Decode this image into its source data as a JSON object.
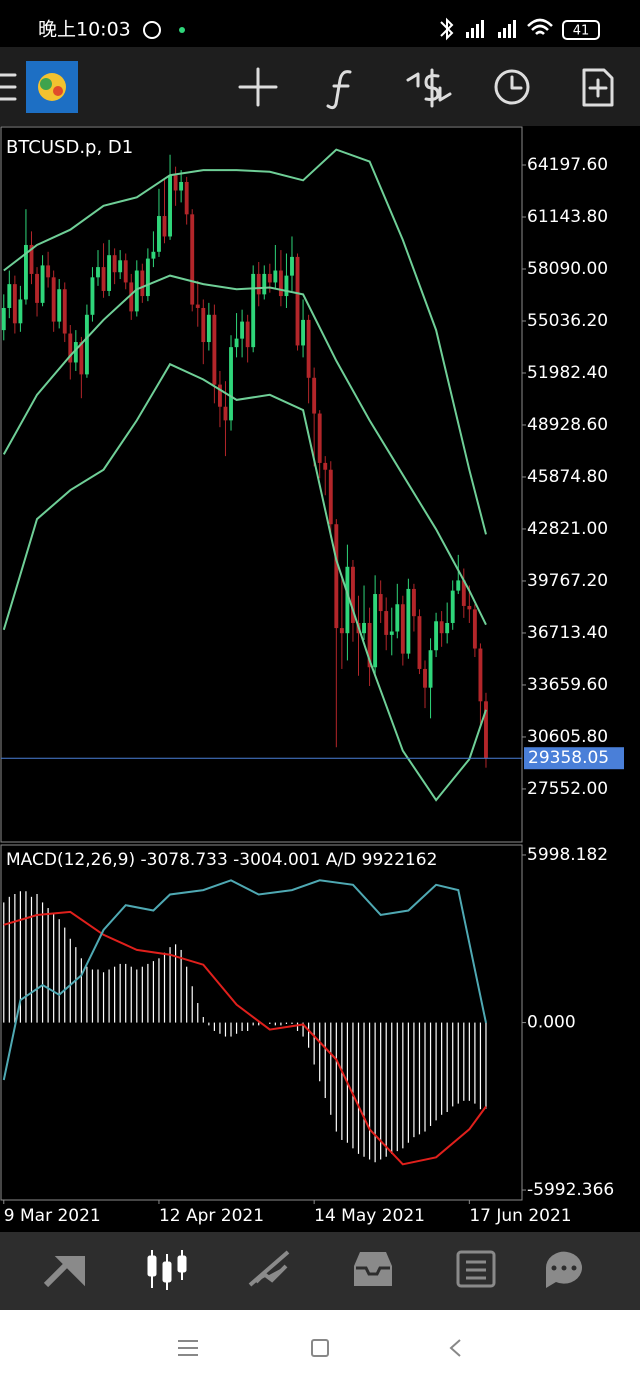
{
  "status_bar": {
    "time": "晚上10:03",
    "battery": "41"
  },
  "chart_data": [
    {
      "type": "candlestick",
      "title": "BTCUSD.p, D1",
      "open": [
        54500,
        55800,
        57200,
        54900,
        56300,
        59500,
        57800,
        56100,
        58300,
        57600,
        55000,
        56900,
        54300,
        52600,
        53800,
        51900,
        55400,
        57600,
        58200,
        56800,
        58900,
        57900,
        58600,
        57300,
        55600,
        58000,
        56500,
        58700,
        59100,
        61200,
        60000,
        63600,
        62700,
        63200,
        61300,
        56000,
        55800,
        53800,
        55400,
        51300,
        50000,
        49200,
        53500,
        54000,
        55000,
        53500,
        57800,
        56600,
        57800,
        57300,
        58000,
        56500,
        57700,
        58800,
        53600,
        55100,
        51700,
        49600,
        46700,
        46300,
        43100,
        37000,
        36700,
        40600,
        37300,
        36700,
        37300,
        34700,
        39000,
        38000,
        36600,
        36800,
        38400,
        35500,
        39300,
        37700,
        34600,
        33500,
        35700,
        37400,
        36700,
        37300,
        39200,
        39800,
        38300,
        38100,
        35800,
        32700
      ],
      "high": [
        56600,
        58000,
        57700,
        57100,
        61600,
        60300,
        58200,
        58900,
        59100,
        58000,
        57500,
        57300,
        54800,
        54500,
        54100,
        56000,
        58200,
        59200,
        59600,
        59800,
        59300,
        59200,
        59000,
        57800,
        58600,
        58400,
        59300,
        60300,
        62800,
        63400,
        64800,
        64100,
        63900,
        63500,
        61600,
        57400,
        56300,
        56100,
        56000,
        52100,
        51500,
        54200,
        55500,
        55700,
        55400,
        58300,
        58500,
        58300,
        58400,
        59500,
        59200,
        59000,
        60000,
        59000,
        56300,
        55400,
        52300,
        49800,
        47100,
        46800,
        43400,
        40000,
        41900,
        41000,
        38900,
        39500,
        38200,
        40100,
        39800,
        38800,
        38200,
        39600,
        38900,
        39900,
        39600,
        38100,
        35100,
        36400,
        37900,
        38000,
        38500,
        39800,
        41300,
        40500,
        39500,
        38400,
        36100,
        33200
      ],
      "low": [
        53900,
        55200,
        54300,
        54400,
        56000,
        57200,
        55300,
        55900,
        57000,
        54400,
        54600,
        53800,
        51600,
        52100,
        50500,
        51700,
        55000,
        57100,
        56400,
        56500,
        57200,
        57500,
        56900,
        55100,
        55300,
        56100,
        56200,
        58200,
        58800,
        59600,
        59800,
        61800,
        62000,
        60700,
        55600,
        54700,
        52500,
        53300,
        50200,
        48800,
        47100,
        48600,
        52900,
        52900,
        52600,
        53200,
        55900,
        56300,
        56700,
        56900,
        55900,
        55800,
        56800,
        53300,
        52900,
        50200,
        46500,
        45800,
        44800,
        42300,
        30000,
        34600,
        35100,
        36200,
        34200,
        36300,
        33600,
        34200,
        37300,
        35700,
        35400,
        36400,
        34800,
        35200,
        36800,
        34300,
        32300,
        31700,
        35300,
        35900,
        36100,
        36900,
        39000,
        37600,
        37300,
        35300,
        31300,
        28800
      ],
      "close": [
        55800,
        57200,
        54900,
        56300,
        59500,
        57800,
        56100,
        58300,
        57600,
        55000,
        56900,
        54300,
        52600,
        53800,
        51900,
        55400,
        57600,
        58200,
        56800,
        58900,
        57900,
        58600,
        57300,
        55600,
        58000,
        56500,
        58700,
        59100,
        61200,
        60000,
        63600,
        62700,
        63200,
        61300,
        56000,
        55800,
        53800,
        55400,
        51300,
        50000,
        49200,
        53500,
        54000,
        55000,
        53500,
        57800,
        56600,
        57800,
        57300,
        58000,
        56500,
        57700,
        58800,
        53600,
        55100,
        51700,
        49600,
        46700,
        46300,
        43100,
        37000,
        36700,
        40600,
        37300,
        36700,
        37300,
        34700,
        39000,
        38000,
        36600,
        36800,
        38400,
        35500,
        39300,
        37700,
        34600,
        33500,
        35700,
        37400,
        36700,
        37300,
        39200,
        39800,
        38300,
        38100,
        35800,
        32700,
        29358
      ],
      "up_color": "#2fd67a",
      "down_color": "#b3262a",
      "series": [
        {
          "color": "#6fcf97",
          "x": [
            0,
            6,
            12,
            18,
            24,
            30,
            36,
            42,
            48,
            54,
            60,
            66,
            72,
            78,
            84,
            87
          ],
          "values": [
            58000,
            59500,
            60400,
            61800,
            62300,
            63600,
            63900,
            63900,
            63800,
            63300,
            65100,
            64400,
            59800,
            54500,
            46300,
            42500
          ]
        },
        {
          "color": "#6fcf97",
          "x": [
            0,
            6,
            12,
            18,
            24,
            30,
            36,
            42,
            48,
            54,
            60,
            66,
            72,
            78,
            84,
            87
          ],
          "values": [
            47200,
            50700,
            53000,
            55100,
            56900,
            57700,
            57200,
            56900,
            57000,
            56600,
            52700,
            49200,
            46000,
            42800,
            39200,
            37200
          ]
        },
        {
          "color": "#6fcf97",
          "x": [
            0,
            6,
            12,
            18,
            24,
            30,
            36,
            42,
            48,
            54,
            60,
            66,
            72,
            78,
            84,
            87
          ],
          "values": [
            36900,
            43400,
            45100,
            46300,
            49200,
            52500,
            51600,
            50400,
            50700,
            49800,
            41000,
            35100,
            29800,
            26900,
            29300,
            32200
          ]
        }
      ],
      "last_price": 29358.05,
      "last_price_color": "#4a7fd8",
      "xlim": [
        -0.5,
        93.5
      ],
      "ylim": [
        24437,
        66429
      ],
      "yticks": [
        {
          "value": 27552,
          "label": "27552.00"
        },
        {
          "value": 30605.8,
          "label": "30605.80"
        },
        {
          "value": 33659.6,
          "label": "33659.60"
        },
        {
          "value": 36713.4,
          "label": "36713.40"
        },
        {
          "value": 39767.2,
          "label": "39767.20"
        },
        {
          "value": 42821,
          "label": "42821.00"
        },
        {
          "value": 45874.8,
          "label": "45874.80"
        },
        {
          "value": 48928.6,
          "label": "48928.60"
        },
        {
          "value": 51982.4,
          "label": "51982.40"
        },
        {
          "value": 55036.2,
          "label": "55036.20"
        },
        {
          "value": 58090,
          "label": "58090.00"
        },
        {
          "value": 61143.8,
          "label": "61143.80"
        },
        {
          "value": 64197.6,
          "label": "64197.60"
        }
      ]
    },
    {
      "type": "macd",
      "title": "MACD(12,26,9) -3078.733 -3004.001 A/D 9922162",
      "values": [
        4300,
        4500,
        4600,
        4700,
        4700,
        4500,
        4600,
        4300,
        4100,
        3900,
        3700,
        3400,
        3000,
        2700,
        2300,
        2000,
        1900,
        1900,
        1800,
        1900,
        2000,
        2100,
        2100,
        2000,
        1900,
        2000,
        2100,
        2200,
        2300,
        2500,
        2700,
        2800,
        2600,
        2000,
        1300,
        700,
        200,
        -100,
        -300,
        -400,
        -500,
        -500,
        -400,
        -300,
        -300,
        -100,
        -100,
        0,
        -50,
        -100,
        -100,
        -50,
        -50,
        -300,
        -500,
        -900,
        -1500,
        -2100,
        -2700,
        -3300,
        -3900,
        -4200,
        -4300,
        -4500,
        -4700,
        -4800,
        -4900,
        -5000,
        -4900,
        -4800,
        -4700,
        -4600,
        -4500,
        -4300,
        -4100,
        -4000,
        -3900,
        -3700,
        -3500,
        -3300,
        -3200,
        -3000,
        -2900,
        -2800,
        -2800,
        -2900,
        -3100,
        -3078.733
      ],
      "color": "#ffffff",
      "series": [
        {
          "color": "#e0201c",
          "x": [
            0,
            6,
            12,
            18,
            24,
            30,
            36,
            42,
            48,
            54,
            60,
            66,
            72,
            78,
            84,
            87
          ],
          "values": [
            3500,
            3850,
            3960,
            3140,
            2600,
            2430,
            2070,
            640,
            -250,
            -70,
            -1320,
            -3820,
            -5070,
            -4820,
            -3820,
            -3004.001
          ]
        },
        {
          "color": "#4fa9b3",
          "axis": "y2",
          "x": [
            0,
            3,
            7,
            10,
            14,
            18,
            22,
            27,
            30,
            36,
            41,
            46,
            52,
            57,
            63,
            68,
            73,
            78,
            82,
            87
          ],
          "values": [
            9280000,
            10180000,
            10350000,
            10240000,
            10460000,
            10970000,
            11250000,
            11190000,
            11370000,
            11420000,
            11530000,
            11370000,
            11420000,
            11530000,
            11480000,
            11140000,
            11190000,
            11480000,
            11420000,
            9922162
          ]
        }
      ],
      "xlim": [
        -0.5,
        93.5
      ],
      "ylim": [
        -6349,
        6355
      ],
      "y2lim": [
        7928000,
        11928000
      ],
      "yticks": [
        {
          "value": -5992.366,
          "label": "-5992.366"
        },
        {
          "value": 0,
          "label": "0.000"
        },
        {
          "value": 5998.182,
          "label": "5998.182"
        }
      ],
      "xticks": [
        {
          "value": 0,
          "label": "9 Mar 2021"
        },
        {
          "value": 28,
          "label": "12 Apr 2021"
        },
        {
          "value": 56,
          "label": "14 May 2021"
        },
        {
          "value": 84,
          "label": "17 Jun 2021"
        }
      ]
    }
  ]
}
